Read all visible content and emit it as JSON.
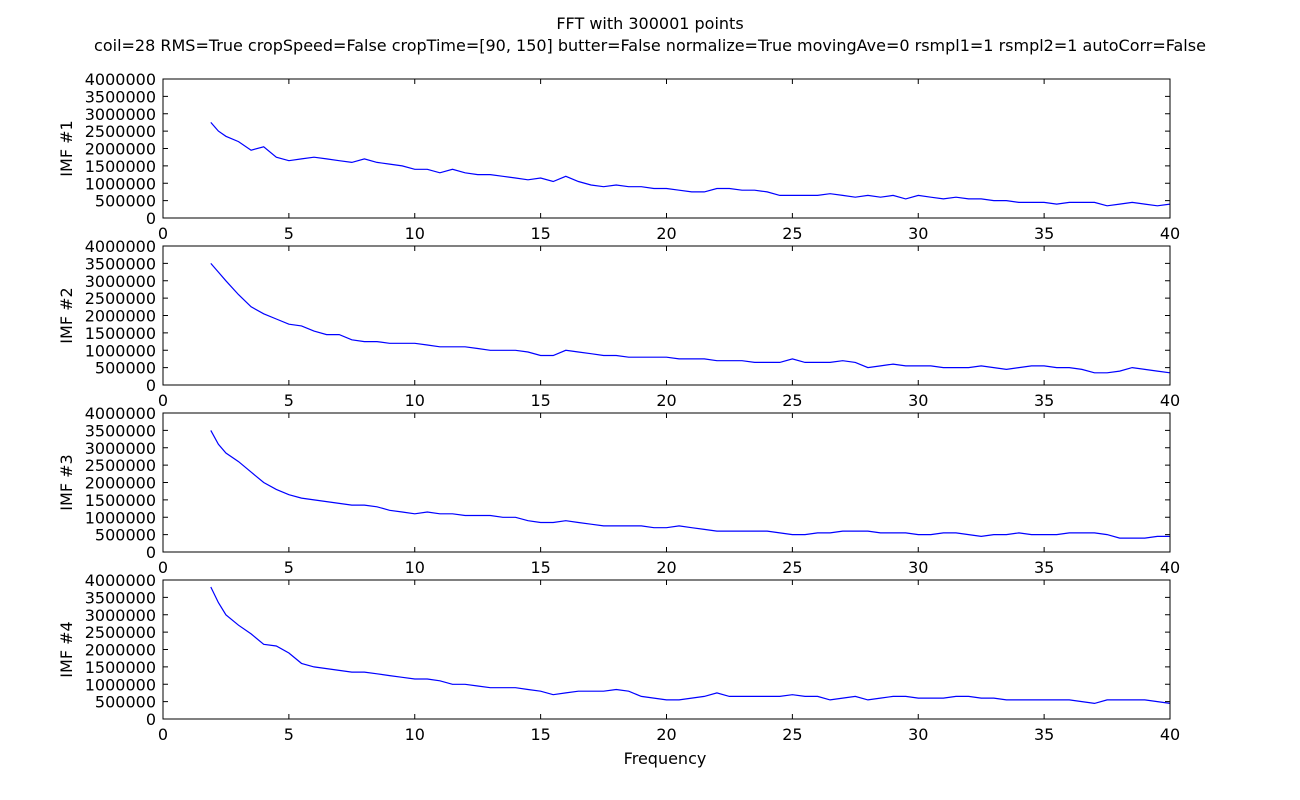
{
  "figure": {
    "title": "FFT with 300001 points",
    "subtitle": "coil=28 RMS=True cropSpeed=False cropTime=[90, 150] butter=False normalize=True movingAve=0 rsmpl1=1 rsmpl2=1 autoCorr=False",
    "xlabel": "Frequency"
  },
  "colors": {
    "line": "#0000ff",
    "axes": "#000000",
    "background": "#ffffff"
  },
  "chart_data": [
    {
      "type": "line",
      "ylabel": "IMF #1",
      "xlim": [
        0,
        40
      ],
      "ylim": [
        0,
        4000000
      ],
      "xticks": [
        0,
        5,
        10,
        15,
        20,
        25,
        30,
        35,
        40
      ],
      "yticks": [
        0,
        500000,
        1000000,
        1500000,
        2000000,
        2500000,
        3000000,
        3500000,
        4000000
      ],
      "grid": false,
      "series": [
        {
          "x": [
            1.9,
            2.2,
            2.5,
            3.0,
            3.5,
            4.0,
            4.5,
            5.0,
            5.5,
            6.0,
            6.5,
            7.0,
            7.5,
            8.0,
            8.5,
            9.0,
            9.5,
            10.0,
            10.5,
            11.0,
            11.5,
            12.0,
            12.5,
            13.0,
            13.5,
            14.0,
            14.5,
            15.0,
            15.5,
            16.0,
            16.5,
            17.0,
            17.5,
            18.0,
            18.5,
            19.0,
            19.5,
            20.0,
            20.5,
            21.0,
            21.5,
            22.0,
            22.5,
            23.0,
            23.5,
            24.0,
            24.5,
            25.0,
            25.5,
            26.0,
            26.5,
            27.0,
            27.5,
            28.0,
            28.5,
            29.0,
            29.5,
            30.0,
            30.5,
            31.0,
            31.5,
            32.0,
            32.5,
            33.0,
            33.5,
            34.0,
            34.5,
            35.0,
            35.5,
            36.0,
            36.5,
            37.0,
            37.5,
            38.0,
            38.5,
            39.0,
            39.5,
            40.0
          ],
          "y": [
            2750000,
            2500000,
            2350000,
            2200000,
            1950000,
            2050000,
            1750000,
            1650000,
            1700000,
            1750000,
            1700000,
            1650000,
            1600000,
            1700000,
            1600000,
            1550000,
            1500000,
            1400000,
            1400000,
            1300000,
            1400000,
            1300000,
            1250000,
            1250000,
            1200000,
            1150000,
            1100000,
            1150000,
            1050000,
            1200000,
            1050000,
            950000,
            900000,
            950000,
            900000,
            900000,
            850000,
            850000,
            800000,
            750000,
            750000,
            850000,
            850000,
            800000,
            800000,
            750000,
            650000,
            650000,
            650000,
            650000,
            700000,
            650000,
            600000,
            650000,
            600000,
            650000,
            550000,
            650000,
            600000,
            550000,
            600000,
            550000,
            550000,
            500000,
            500000,
            450000,
            450000,
            450000,
            400000,
            450000,
            450000,
            450000,
            350000,
            400000,
            450000,
            400000,
            350000,
            400000
          ]
        }
      ]
    },
    {
      "type": "line",
      "ylabel": "IMF #2",
      "xlim": [
        0,
        40
      ],
      "ylim": [
        0,
        4000000
      ],
      "xticks": [
        0,
        5,
        10,
        15,
        20,
        25,
        30,
        35,
        40
      ],
      "yticks": [
        0,
        500000,
        1000000,
        1500000,
        2000000,
        2500000,
        3000000,
        3500000,
        4000000
      ],
      "grid": false,
      "series": [
        {
          "x": [
            1.9,
            2.2,
            2.5,
            3.0,
            3.5,
            4.0,
            4.5,
            5.0,
            5.5,
            6.0,
            6.5,
            7.0,
            7.5,
            8.0,
            8.5,
            9.0,
            9.5,
            10.0,
            10.5,
            11.0,
            11.5,
            12.0,
            12.5,
            13.0,
            13.5,
            14.0,
            14.5,
            15.0,
            15.5,
            16.0,
            16.5,
            17.0,
            17.5,
            18.0,
            18.5,
            19.0,
            19.5,
            20.0,
            20.5,
            21.0,
            21.5,
            22.0,
            22.5,
            23.0,
            23.5,
            24.0,
            24.5,
            25.0,
            25.5,
            26.0,
            26.5,
            27.0,
            27.5,
            28.0,
            28.5,
            29.0,
            29.5,
            30.0,
            30.5,
            31.0,
            31.5,
            32.0,
            32.5,
            33.0,
            33.5,
            34.0,
            34.5,
            35.0,
            35.5,
            36.0,
            36.5,
            37.0,
            37.5,
            38.0,
            38.5,
            39.0,
            39.5,
            40.0
          ],
          "y": [
            3500000,
            3250000,
            3000000,
            2600000,
            2250000,
            2050000,
            1900000,
            1750000,
            1700000,
            1550000,
            1450000,
            1450000,
            1300000,
            1250000,
            1250000,
            1200000,
            1200000,
            1200000,
            1150000,
            1100000,
            1100000,
            1100000,
            1050000,
            1000000,
            1000000,
            1000000,
            950000,
            850000,
            850000,
            1000000,
            950000,
            900000,
            850000,
            850000,
            800000,
            800000,
            800000,
            800000,
            750000,
            750000,
            750000,
            700000,
            700000,
            700000,
            650000,
            650000,
            650000,
            750000,
            650000,
            650000,
            650000,
            700000,
            650000,
            500000,
            550000,
            600000,
            550000,
            550000,
            550000,
            500000,
            500000,
            500000,
            550000,
            500000,
            450000,
            500000,
            550000,
            550000,
            500000,
            500000,
            450000,
            350000,
            350000,
            400000,
            500000,
            450000,
            400000,
            350000
          ]
        }
      ]
    },
    {
      "type": "line",
      "ylabel": "IMF #3",
      "xlim": [
        0,
        40
      ],
      "ylim": [
        0,
        4000000
      ],
      "xticks": [
        0,
        5,
        10,
        15,
        20,
        25,
        30,
        35,
        40
      ],
      "yticks": [
        0,
        500000,
        1000000,
        1500000,
        2000000,
        2500000,
        3000000,
        3500000,
        4000000
      ],
      "grid": false,
      "series": [
        {
          "x": [
            1.9,
            2.2,
            2.5,
            3.0,
            3.5,
            4.0,
            4.5,
            5.0,
            5.5,
            6.0,
            6.5,
            7.0,
            7.5,
            8.0,
            8.5,
            9.0,
            9.5,
            10.0,
            10.5,
            11.0,
            11.5,
            12.0,
            12.5,
            13.0,
            13.5,
            14.0,
            14.5,
            15.0,
            15.5,
            16.0,
            16.5,
            17.0,
            17.5,
            18.0,
            18.5,
            19.0,
            19.5,
            20.0,
            20.5,
            21.0,
            21.5,
            22.0,
            22.5,
            23.0,
            23.5,
            24.0,
            24.5,
            25.0,
            25.5,
            26.0,
            26.5,
            27.0,
            27.5,
            28.0,
            28.5,
            29.0,
            29.5,
            30.0,
            30.5,
            31.0,
            31.5,
            32.0,
            32.5,
            33.0,
            33.5,
            34.0,
            34.5,
            35.0,
            35.5,
            36.0,
            36.5,
            37.0,
            37.5,
            38.0,
            38.5,
            39.0,
            39.5,
            40.0
          ],
          "y": [
            3500000,
            3100000,
            2850000,
            2600000,
            2300000,
            2000000,
            1800000,
            1650000,
            1550000,
            1500000,
            1450000,
            1400000,
            1350000,
            1350000,
            1300000,
            1200000,
            1150000,
            1100000,
            1150000,
            1100000,
            1100000,
            1050000,
            1050000,
            1050000,
            1000000,
            1000000,
            900000,
            850000,
            850000,
            900000,
            850000,
            800000,
            750000,
            750000,
            750000,
            750000,
            700000,
            700000,
            750000,
            700000,
            650000,
            600000,
            600000,
            600000,
            600000,
            600000,
            550000,
            500000,
            500000,
            550000,
            550000,
            600000,
            600000,
            600000,
            550000,
            550000,
            550000,
            500000,
            500000,
            550000,
            550000,
            500000,
            450000,
            500000,
            500000,
            550000,
            500000,
            500000,
            500000,
            550000,
            550000,
            550000,
            500000,
            400000,
            400000,
            400000,
            450000,
            450000
          ]
        }
      ]
    },
    {
      "type": "line",
      "ylabel": "IMF #4",
      "xlim": [
        0,
        40
      ],
      "ylim": [
        0,
        4000000
      ],
      "xticks": [
        0,
        5,
        10,
        15,
        20,
        25,
        30,
        35,
        40
      ],
      "yticks": [
        0,
        500000,
        1000000,
        1500000,
        2000000,
        2500000,
        3000000,
        3500000,
        4000000
      ],
      "grid": false,
      "series": [
        {
          "x": [
            1.9,
            2.2,
            2.5,
            3.0,
            3.5,
            4.0,
            4.5,
            5.0,
            5.5,
            6.0,
            6.5,
            7.0,
            7.5,
            8.0,
            8.5,
            9.0,
            9.5,
            10.0,
            10.5,
            11.0,
            11.5,
            12.0,
            12.5,
            13.0,
            13.5,
            14.0,
            14.5,
            15.0,
            15.5,
            16.0,
            16.5,
            17.0,
            17.5,
            18.0,
            18.5,
            19.0,
            19.5,
            20.0,
            20.5,
            21.0,
            21.5,
            22.0,
            22.5,
            23.0,
            23.5,
            24.0,
            24.5,
            25.0,
            25.5,
            26.0,
            26.5,
            27.0,
            27.5,
            28.0,
            28.5,
            29.0,
            29.5,
            30.0,
            30.5,
            31.0,
            31.5,
            32.0,
            32.5,
            33.0,
            33.5,
            34.0,
            34.5,
            35.0,
            35.5,
            36.0,
            36.5,
            37.0,
            37.5,
            38.0,
            38.5,
            39.0,
            39.5,
            40.0
          ],
          "y": [
            3800000,
            3350000,
            3000000,
            2700000,
            2450000,
            2150000,
            2100000,
            1900000,
            1600000,
            1500000,
            1450000,
            1400000,
            1350000,
            1350000,
            1300000,
            1250000,
            1200000,
            1150000,
            1150000,
            1100000,
            1000000,
            1000000,
            950000,
            900000,
            900000,
            900000,
            850000,
            800000,
            700000,
            750000,
            800000,
            800000,
            800000,
            850000,
            800000,
            650000,
            600000,
            550000,
            550000,
            600000,
            650000,
            750000,
            650000,
            650000,
            650000,
            650000,
            650000,
            700000,
            650000,
            650000,
            550000,
            600000,
            650000,
            550000,
            600000,
            650000,
            650000,
            600000,
            600000,
            600000,
            650000,
            650000,
            600000,
            600000,
            550000,
            550000,
            550000,
            550000,
            550000,
            550000,
            500000,
            450000,
            550000,
            550000,
            550000,
            550000,
            500000,
            450000
          ]
        }
      ]
    }
  ]
}
